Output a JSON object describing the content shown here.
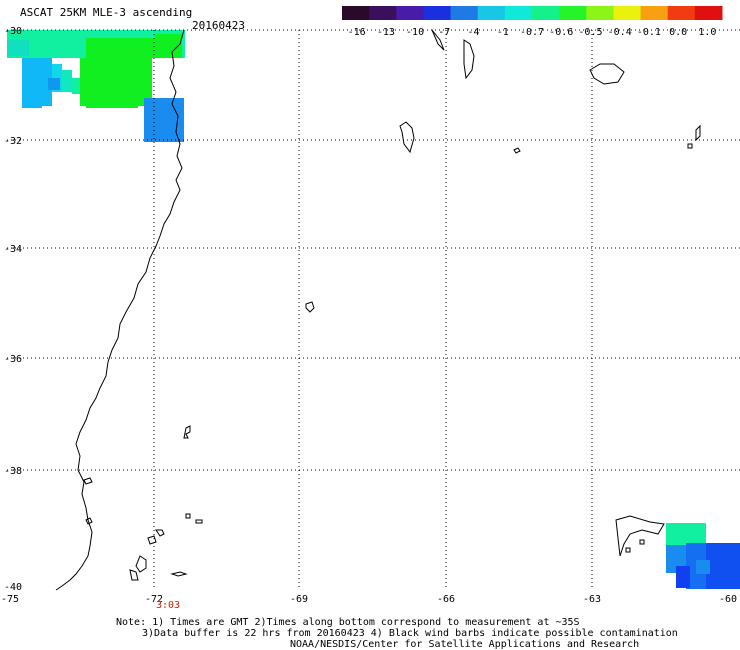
{
  "header": {
    "title": "ASCAT 25KM MLE-3 ascending",
    "date": "20160423"
  },
  "colorbar": {
    "labels": [
      "-16",
      "-13",
      "-10",
      "-7",
      "-4",
      "-1",
      "-0.7",
      "-0.6",
      "-0.5",
      "-0.4",
      "-0.1",
      "0.0",
      "1.0"
    ],
    "colors": [
      "#2a0a2a",
      "#3c0f5e",
      "#4a1aa8",
      "#1a30e0",
      "#1e7be6",
      "#18c6e6",
      "#10e8d8",
      "#16f08a",
      "#26f42a",
      "#8cf416",
      "#e8f20c",
      "#f8a010",
      "#f03c10",
      "#e01010"
    ]
  },
  "axes": {
    "lat_labels": [
      "-30",
      "-32",
      "-34",
      "-36",
      "-38",
      "-40"
    ],
    "lon_labels": [
      "-75",
      "-72",
      "-69",
      "-66",
      "-63",
      "-60"
    ]
  },
  "time_label": "3:03",
  "notes": [
    "Note: 1) Times are GMT 2)Times along bottom correspond to measurement at ~35S",
    "3)Data buffer is 22 hrs from 20160423 4) Black wind barbs indicate possible contamination",
    "NOAA/NESDIS/Center for Satellite Applications and Research"
  ],
  "data_colors": {
    "cyan_green": "#10f0a0",
    "green": "#10f020",
    "cyan": "#10b8f8",
    "blue": "#1878f0",
    "deep_blue": "#1040f0"
  }
}
